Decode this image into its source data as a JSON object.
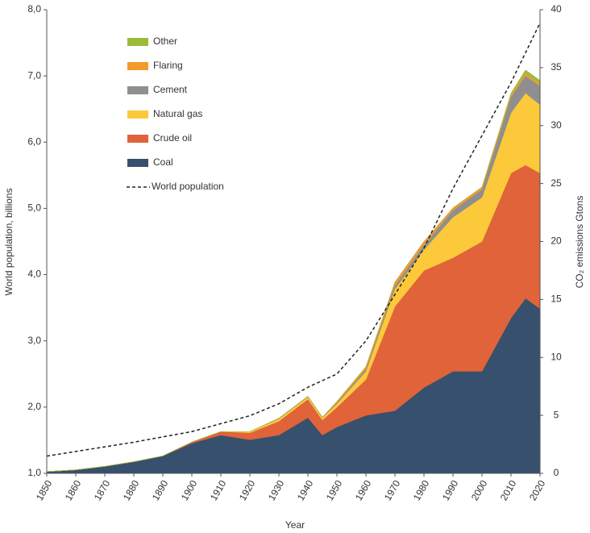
{
  "chart_data": {
    "type": "stacked_area",
    "x_label": "Year",
    "y_label": "World population, billions",
    "y2_label": "CO₂ emissions Gtons",
    "x": [
      1850,
      1860,
      1870,
      1880,
      1890,
      1900,
      1910,
      1920,
      1930,
      1940,
      1945,
      1950,
      1960,
      1970,
      1980,
      1990,
      2000,
      2010,
      2015,
      2020
    ],
    "xlim": [
      1850,
      2020
    ],
    "xticks": [
      1850,
      1860,
      1870,
      1880,
      1890,
      1900,
      1910,
      1920,
      1930,
      1940,
      1950,
      1960,
      1970,
      1980,
      1990,
      2000,
      2010,
      2020
    ],
    "ylim": [
      1,
      8
    ],
    "yticks": [
      {
        "value": 1,
        "label": "1,0"
      },
      {
        "value": 2,
        "label": "2,0"
      },
      {
        "value": 3,
        "label": "3,0"
      },
      {
        "value": 4,
        "label": "4,0"
      },
      {
        "value": 5,
        "label": "5,0"
      },
      {
        "value": 6,
        "label": "6,0"
      },
      {
        "value": 7,
        "label": "7,0"
      },
      {
        "value": 8,
        "label": "8,0"
      }
    ],
    "y2lim": [
      0,
      40
    ],
    "y2ticks": [
      0,
      5,
      10,
      15,
      20,
      25,
      30,
      35,
      40
    ],
    "legend": "upper-left",
    "series": [
      {
        "name": "Coal",
        "color": "#36506d",
        "axis": "y2",
        "values": [
          0.15,
          0.3,
          0.6,
          1.0,
          1.5,
          2.6,
          3.3,
          2.9,
          3.3,
          4.8,
          3.3,
          4.0,
          5.0,
          5.4,
          7.4,
          8.8,
          8.8,
          13.4,
          15.1,
          14.2
        ]
      },
      {
        "name": "Crude oil",
        "color": "#e0633a",
        "axis": "y2",
        "values": [
          0,
          0,
          0,
          0,
          0,
          0.1,
          0.3,
          0.6,
          1.2,
          1.6,
          1.3,
          1.7,
          3.1,
          9.0,
          10.1,
          9.8,
          11.2,
          12.5,
          11.5,
          11.7
        ]
      },
      {
        "name": "Natural gas",
        "color": "#fcc93a",
        "axis": "y2",
        "values": [
          0,
          0,
          0,
          0,
          0,
          0,
          0,
          0.1,
          0.2,
          0.2,
          0.2,
          0.3,
          0.7,
          1.5,
          1.8,
          3.5,
          3.8,
          5.2,
          6.2,
          5.9
        ]
      },
      {
        "name": "Cement",
        "color": "#8f8f8f",
        "axis": "y2",
        "values": [
          0,
          0,
          0,
          0,
          0,
          0,
          0,
          0,
          0.05,
          0.05,
          0.05,
          0.1,
          0.2,
          0.3,
          0.4,
          0.6,
          0.7,
          1.4,
          1.5,
          1.6
        ]
      },
      {
        "name": "Flaring",
        "color": "#f39a2e",
        "axis": "y2",
        "values": [
          0,
          0,
          0,
          0,
          0,
          0,
          0,
          0,
          0,
          0,
          0,
          0.1,
          0.2,
          0.3,
          0.3,
          0.2,
          0.2,
          0.2,
          0.2,
          0.2
        ]
      },
      {
        "name": "Other",
        "color": "#9cbb3c",
        "axis": "y2",
        "values": [
          0,
          0,
          0,
          0,
          0,
          0,
          0,
          0,
          0,
          0,
          0,
          0,
          0,
          0,
          0,
          0,
          0,
          0.1,
          0.3,
          0.3
        ]
      },
      {
        "name": "World population",
        "color": "#222222",
        "type": "line",
        "dash": true,
        "values": [
          1.26,
          1.33,
          1.4,
          1.47,
          1.55,
          1.63,
          1.75,
          1.87,
          2.05,
          2.3,
          2.4,
          2.5,
          3.0,
          3.7,
          4.4,
          5.3,
          6.1,
          6.9,
          7.35,
          7.8
        ]
      }
    ]
  }
}
